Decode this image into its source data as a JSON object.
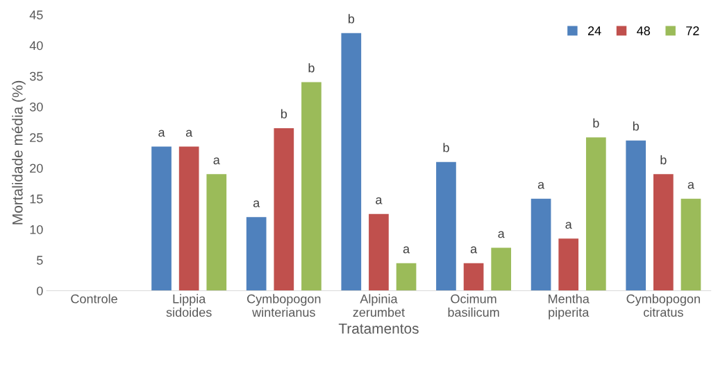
{
  "chart_data": {
    "type": "bar",
    "xlabel": "Tratamentos",
    "ylabel": "Mortalidade média (%)",
    "categories": [
      "Controle",
      "Lippia\nsidoides",
      "Cymbopogon\nwinterianus",
      "Alpinia\nzerumbet",
      "Ocimum\nbasilicum",
      "Mentha\npiperita",
      "Cymbopogon\ncitratus"
    ],
    "series": [
      {
        "name": "24",
        "color": "#4f81bd",
        "values": [
          0,
          23.5,
          12,
          42,
          21,
          15,
          24.5
        ],
        "value_labels": [
          null,
          "a",
          "a",
          "b",
          "b",
          "a",
          "b"
        ]
      },
      {
        "name": "48",
        "color": "#c0504d",
        "values": [
          0,
          23.5,
          26.5,
          12.5,
          4.5,
          8.5,
          19
        ],
        "value_labels": [
          null,
          "a",
          "b",
          "a",
          "a",
          "a",
          "b"
        ]
      },
      {
        "name": "72",
        "color": "#9bbb59",
        "values": [
          0,
          19,
          34,
          4.5,
          7,
          25,
          15
        ],
        "value_labels": [
          null,
          "a",
          "b",
          "a",
          "a",
          "b",
          "a"
        ]
      }
    ],
    "ylim": [
      0,
      45
    ],
    "yticks": [
      0,
      5,
      10,
      15,
      20,
      25,
      30,
      35,
      40,
      45
    ],
    "grid": false,
    "legend": "top right"
  }
}
